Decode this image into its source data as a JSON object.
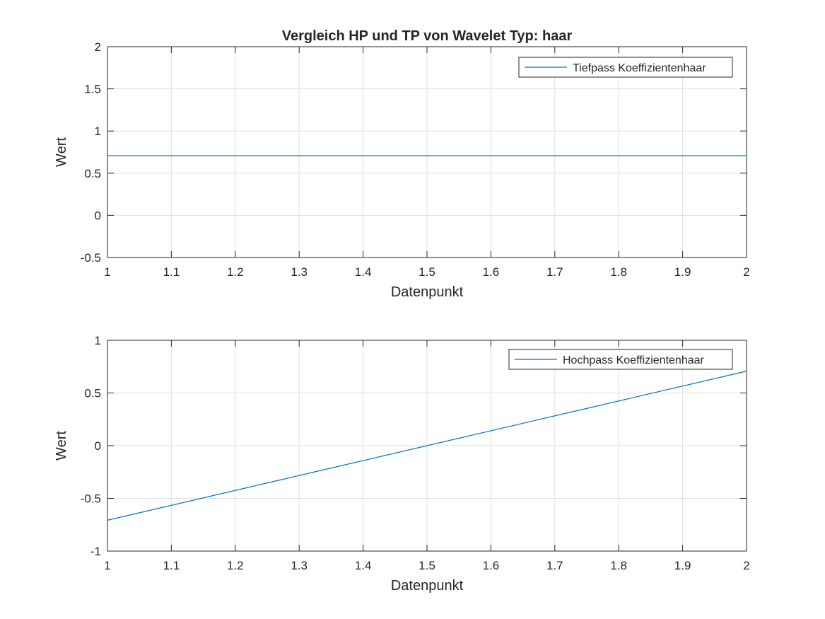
{
  "figure": {
    "title": "Vergleich HP und TP von Wavelet Typ: haar",
    "background": "#ffffff"
  },
  "chart_data": [
    {
      "type": "line",
      "title": "Vergleich HP und TP von Wavelet Typ: haar",
      "xlabel": "Datenpunkt",
      "ylabel": "Wert",
      "xlim": [
        1,
        2
      ],
      "ylim": [
        -0.5,
        2
      ],
      "xticks": [
        1,
        1.1,
        1.2,
        1.3,
        1.4,
        1.5,
        1.6,
        1.7,
        1.8,
        1.9,
        2
      ],
      "xtick_labels": [
        "1",
        "1.1",
        "1.2",
        "1.3",
        "1.4",
        "1.5",
        "1.6",
        "1.7",
        "1.8",
        "1.9",
        "2"
      ],
      "yticks": [
        -0.5,
        0,
        0.5,
        1,
        1.5,
        2
      ],
      "ytick_labels": [
        "-0.5",
        "0",
        "0.5",
        "1",
        "1.5",
        "2"
      ],
      "grid": true,
      "legend_position": "top-right",
      "series": [
        {
          "name": "Tiefpass Koeffizientenhaar",
          "color": "#0072bd",
          "x": [
            1,
            2
          ],
          "y": [
            0.7071,
            0.7071
          ]
        }
      ]
    },
    {
      "type": "line",
      "title": "",
      "xlabel": "Datenpunkt",
      "ylabel": "Wert",
      "xlim": [
        1,
        2
      ],
      "ylim": [
        -1,
        1
      ],
      "xticks": [
        1,
        1.1,
        1.2,
        1.3,
        1.4,
        1.5,
        1.6,
        1.7,
        1.8,
        1.9,
        2
      ],
      "xtick_labels": [
        "1",
        "1.1",
        "1.2",
        "1.3",
        "1.4",
        "1.5",
        "1.6",
        "1.7",
        "1.8",
        "1.9",
        "2"
      ],
      "yticks": [
        -1,
        -0.5,
        0,
        0.5,
        1
      ],
      "ytick_labels": [
        "-1",
        "-0.5",
        "0",
        "0.5",
        "1"
      ],
      "grid": true,
      "legend_position": "top-right",
      "series": [
        {
          "name": "Hochpass Koeffizientenhaar",
          "color": "#0072bd",
          "x": [
            1,
            2
          ],
          "y": [
            -0.7071,
            0.7071
          ]
        }
      ]
    }
  ]
}
